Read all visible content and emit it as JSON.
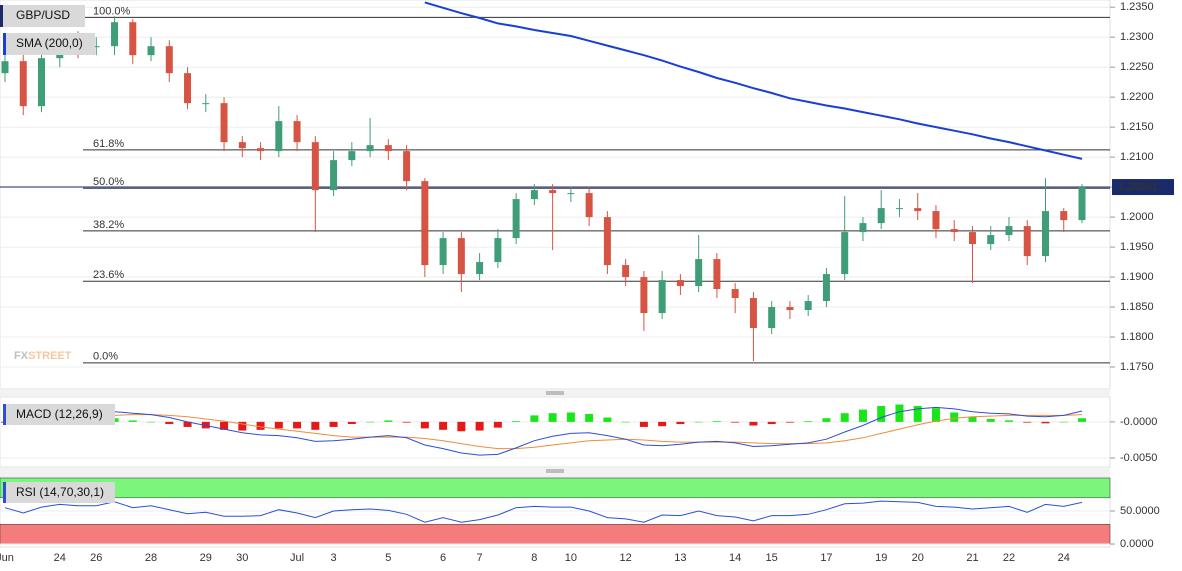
{
  "chart_data": [
    {
      "type": "candlestick",
      "title": "GBP/USD",
      "categories": [
        "Jun",
        null,
        null,
        "24",
        null,
        "26",
        null,
        null,
        "28",
        null,
        null,
        "29",
        null,
        "30",
        null,
        null,
        "Jul",
        null,
        "3",
        null,
        null,
        "5",
        null,
        null,
        "6",
        null,
        "7",
        null,
        null,
        "8",
        null,
        "10",
        null,
        null,
        "12",
        null,
        null,
        "13",
        null,
        null,
        "14",
        null,
        "15",
        null,
        null,
        "17",
        null,
        null,
        "19",
        null,
        "20",
        null,
        null,
        "21",
        null,
        "22",
        null,
        null,
        "24",
        null
      ],
      "open": [
        1.224,
        1.226,
        1.2185,
        1.2265,
        1.229,
        1.2285,
        1.2285,
        1.2325,
        1.227,
        1.2285,
        1.224,
        1.219,
        1.219,
        1.2125,
        1.2115,
        1.211,
        1.216,
        1.2125,
        1.2045,
        1.2095,
        1.211,
        1.212,
        1.211,
        1.206,
        1.192,
        1.1965,
        1.1905,
        1.1925,
        1.1965,
        1.203,
        1.2045,
        1.204,
        1.204,
        1.2,
        1.192,
        1.19,
        1.184,
        1.1895,
        1.1885,
        1.193,
        1.188,
        1.1865,
        1.1815,
        1.185,
        1.1845,
        1.186,
        1.1905,
        1.1975,
        1.199,
        1.2015,
        1.2015,
        1.201,
        1.198,
        1.1975,
        1.1955,
        1.197,
        1.1985,
        1.1935,
        1.201,
        1.1995
      ],
      "high": [
        1.2275,
        1.2275,
        1.228,
        1.2305,
        1.231,
        1.23,
        1.2335,
        1.233,
        1.23,
        1.2295,
        1.225,
        1.2205,
        1.22,
        1.2135,
        1.2125,
        1.2185,
        1.217,
        1.2135,
        1.211,
        1.2125,
        1.2165,
        1.213,
        1.212,
        1.2065,
        1.1975,
        1.1975,
        1.194,
        1.198,
        1.204,
        1.2055,
        1.2055,
        1.205,
        1.205,
        1.201,
        1.193,
        1.191,
        1.191,
        1.1905,
        1.197,
        1.194,
        1.189,
        1.1875,
        1.186,
        1.186,
        1.187,
        1.1915,
        1.2035,
        1.2,
        1.2045,
        1.203,
        1.204,
        1.202,
        1.1995,
        1.1985,
        1.1985,
        1.2,
        1.1995,
        1.2065,
        1.2015,
        1.2055
      ],
      "low": [
        1.2225,
        1.217,
        1.2175,
        1.225,
        1.2265,
        1.227,
        1.227,
        1.2255,
        1.226,
        1.2225,
        1.218,
        1.2175,
        1.211,
        1.21,
        1.2095,
        1.21,
        1.211,
        1.1975,
        1.2035,
        1.2085,
        1.21,
        1.2095,
        1.2045,
        1.19,
        1.1905,
        1.1875,
        1.1895,
        1.1915,
        1.1955,
        1.202,
        1.1945,
        1.2025,
        1.1985,
        1.1905,
        1.1885,
        1.181,
        1.183,
        1.187,
        1.1875,
        1.1865,
        1.184,
        1.176,
        1.1805,
        1.183,
        1.1835,
        1.185,
        1.1895,
        1.196,
        1.198,
        1.2,
        1.1995,
        1.1965,
        1.196,
        1.189,
        1.1945,
        1.196,
        1.192,
        1.1925,
        1.1975,
        1.199
      ],
      "close": [
        1.226,
        1.2185,
        1.2265,
        1.229,
        1.2285,
        1.2285,
        1.2325,
        1.227,
        1.2285,
        1.224,
        1.219,
        1.219,
        1.2125,
        1.2115,
        1.211,
        1.216,
        1.2125,
        1.2045,
        1.2095,
        1.211,
        1.212,
        1.211,
        1.206,
        1.192,
        1.1965,
        1.1905,
        1.1925,
        1.1965,
        1.203,
        1.2045,
        1.204,
        1.204,
        1.2,
        1.192,
        1.19,
        1.184,
        1.1895,
        1.1885,
        1.193,
        1.188,
        1.1865,
        1.1815,
        1.185,
        1.1845,
        1.186,
        1.1905,
        1.1975,
        1.199,
        1.2015,
        1.2015,
        1.201,
        1.198,
        1.1975,
        1.1955,
        1.197,
        1.1985,
        1.1935,
        1.201,
        1.1995,
        1.205
      ],
      "up_color": "#3f9e78",
      "down_color": "#d65443",
      "overlay": {
        "name": "SMA (200,0)",
        "color": "#1a3fd9",
        "values": [
          null,
          null,
          null,
          null,
          null,
          null,
          null,
          null,
          null,
          null,
          null,
          null,
          null,
          null,
          null,
          null,
          null,
          null,
          null,
          null,
          null,
          null,
          null,
          1.2358,
          1.2349,
          1.234,
          1.2332,
          1.2323,
          1.2318,
          1.2312,
          1.2307,
          1.2302,
          1.2294,
          1.2286,
          1.2278,
          1.227,
          1.2261,
          1.2251,
          1.2242,
          1.2232,
          1.2224,
          1.2215,
          1.2207,
          1.2198,
          1.2192,
          1.2186,
          1.2181,
          1.2175,
          1.2169,
          1.2163,
          1.2156,
          1.215,
          1.2144,
          1.2138,
          1.2131,
          1.2125,
          1.2118,
          1.2111,
          1.2104,
          1.2097
        ]
      },
      "fib_levels": [
        {
          "label": "100.0%",
          "value": 1.2333
        },
        {
          "label": "61.8%",
          "value": 1.2112
        },
        {
          "label": "50.0%",
          "value": 1.2048
        },
        {
          "label": "38.2%",
          "value": 1.1977
        },
        {
          "label": "23.6%",
          "value": 1.1893
        },
        {
          "label": "0.0%",
          "value": 1.1757
        }
      ],
      "last_price": 1.20501,
      "last_price_color": "#1b2a6b",
      "watermark": [
        "FX",
        "STREET"
      ],
      "ylim": [
        1.1715,
        1.2362
      ],
      "yticks": [
        {
          "value": 1.235,
          "label": "1.2350"
        },
        {
          "value": 1.23,
          "label": "1.2300"
        },
        {
          "value": 1.225,
          "label": "1.2250"
        },
        {
          "value": 1.22,
          "label": "1.2200"
        },
        {
          "value": 1.215,
          "label": "1.2150"
        },
        {
          "value": 1.21,
          "label": "1.2100"
        },
        {
          "value": 1.205,
          "label": "1.2050"
        },
        {
          "value": 1.2,
          "label": "1.2000"
        },
        {
          "value": 1.195,
          "label": "1.1950"
        },
        {
          "value": 1.19,
          "label": "1.1900"
        },
        {
          "value": 1.185,
          "label": "1.1850"
        },
        {
          "value": 1.18,
          "label": "1.1800"
        },
        {
          "value": 1.175,
          "label": "1.1750"
        }
      ],
      "grid": true
    },
    {
      "type": "macd",
      "title": "MACD (12,26,9)",
      "histogram": {
        "up_color": "#19e619",
        "down_color": "#e61919",
        "values": [
          -0.0001,
          0.0002,
          0.0004,
          0.0005,
          0.0005,
          0.0004,
          0.0005,
          0.0002,
          0.0,
          -0.0003,
          -0.0007,
          -0.0009,
          -0.0011,
          -0.0012,
          -0.0011,
          -0.0009,
          -0.0009,
          -0.0011,
          -0.0007,
          -0.0003,
          0.0,
          0.0002,
          -0.0001,
          -0.0009,
          -0.0011,
          -0.0013,
          -0.0012,
          -0.0008,
          0.0001,
          0.0009,
          0.0012,
          0.0013,
          0.0011,
          0.0006,
          0.0,
          -0.0007,
          -0.0006,
          -0.0003,
          0.0,
          0.0001,
          -0.0001,
          -0.0005,
          -0.0003,
          -0.0001,
          0.0001,
          0.0005,
          0.0012,
          0.0017,
          0.0022,
          0.0024,
          0.0022,
          0.0019,
          0.0013,
          0.0007,
          0.0004,
          0.0002,
          -0.0001,
          -0.0002,
          0.0,
          0.0005
        ]
      },
      "macd": {
        "color": "#2c4fd6",
        "values": [
          0.0,
          0.0003,
          0.0006,
          0.0009,
          0.0011,
          0.0012,
          0.0014,
          0.0012,
          0.001,
          0.0006,
          0.0,
          -0.0005,
          -0.001,
          -0.0015,
          -0.0018,
          -0.0019,
          -0.0022,
          -0.0027,
          -0.0026,
          -0.0024,
          -0.0021,
          -0.0019,
          -0.0022,
          -0.0032,
          -0.0037,
          -0.0043,
          -0.0046,
          -0.0045,
          -0.0036,
          -0.0026,
          -0.002,
          -0.0016,
          -0.0015,
          -0.0019,
          -0.0024,
          -0.0032,
          -0.0033,
          -0.0031,
          -0.0028,
          -0.0027,
          -0.0029,
          -0.0034,
          -0.0033,
          -0.0031,
          -0.0029,
          -0.0024,
          -0.0014,
          -0.0005,
          0.0006,
          0.0014,
          0.0018,
          0.002,
          0.0018,
          0.0014,
          0.0012,
          0.0011,
          0.0008,
          0.0007,
          0.0009,
          0.0015
        ]
      },
      "signal": {
        "color": "#f08c3c",
        "values": [
          0.0001,
          0.0001,
          0.0002,
          0.0004,
          0.0006,
          0.0008,
          0.0009,
          0.001,
          0.001,
          0.0009,
          0.0007,
          0.0004,
          0.0001,
          -0.0003,
          -0.0007,
          -0.001,
          -0.0013,
          -0.0016,
          -0.0019,
          -0.0021,
          -0.0021,
          -0.0021,
          -0.0021,
          -0.0023,
          -0.0026,
          -0.003,
          -0.0034,
          -0.0037,
          -0.0037,
          -0.0035,
          -0.0032,
          -0.0029,
          -0.0026,
          -0.0025,
          -0.0024,
          -0.0025,
          -0.0027,
          -0.0028,
          -0.0028,
          -0.0028,
          -0.0028,
          -0.0029,
          -0.003,
          -0.003,
          -0.003,
          -0.0029,
          -0.0026,
          -0.0022,
          -0.0016,
          -0.001,
          -0.0004,
          0.0001,
          0.0005,
          0.0007,
          0.0008,
          0.0009,
          0.0009,
          0.0009,
          0.0009,
          0.001
        ]
      },
      "ylim": [
        -0.0061,
        0.0033
      ],
      "yticks": [
        {
          "value": 0,
          "label": "-0.0000"
        },
        {
          "value": -0.005,
          "label": "-0.0050"
        }
      ]
    },
    {
      "type": "rsi",
      "title": "RSI (14,70,30,1)",
      "color": "#2c4fd6",
      "values": [
        55,
        47,
        56,
        60,
        58,
        58,
        64,
        55,
        58,
        52,
        46,
        48,
        42,
        42,
        43,
        52,
        47,
        40,
        50,
        52,
        53,
        51,
        45,
        33,
        40,
        33,
        37,
        44,
        55,
        57,
        56,
        56,
        50,
        40,
        38,
        33,
        44,
        43,
        50,
        43,
        41,
        35,
        43,
        43,
        45,
        52,
        61,
        62,
        65,
        64,
        63,
        57,
        56,
        53,
        55,
        57,
        48,
        60,
        57,
        63
      ],
      "overbought": 70,
      "oversold": 30,
      "overbought_color": "#7cf57c",
      "oversold_color": "#f57c7c",
      "ylim": [
        -4.5,
        100
      ],
      "yticks": [
        {
          "value": 50,
          "label": "50.0000"
        },
        {
          "value": 0,
          "label": "0.0000"
        }
      ]
    }
  ]
}
